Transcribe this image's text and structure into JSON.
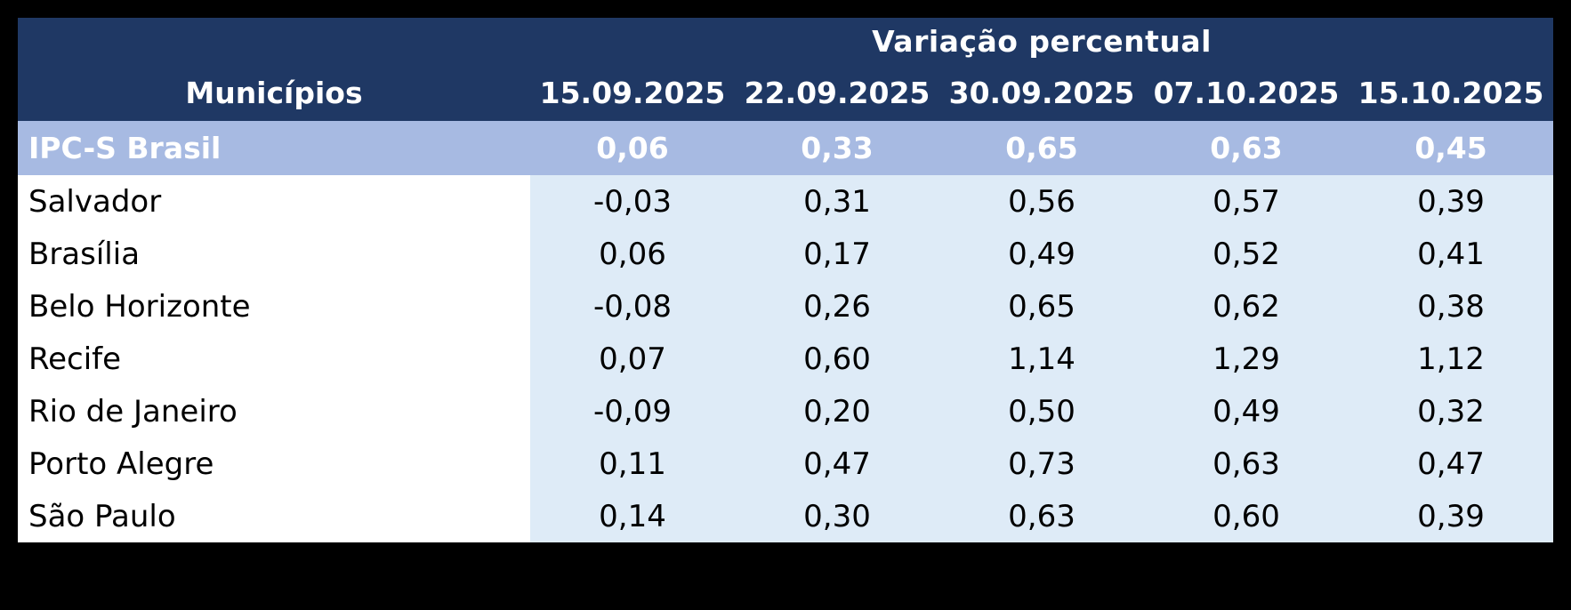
{
  "chart_data": {
    "type": "table",
    "group_header": "Variação percentual",
    "label_column_header": "Municípios",
    "date_columns": [
      "15.09.2025",
      "22.09.2025",
      "30.09.2025",
      "07.10.2025",
      "15.10.2025"
    ],
    "summary_row": {
      "label": "IPC-S Brasil",
      "values": [
        "0,06",
        "0,33",
        "0,65",
        "0,63",
        "0,45"
      ]
    },
    "rows": [
      {
        "label": "Salvador",
        "values": [
          "-0,03",
          "0,31",
          "0,56",
          "0,57",
          "0,39"
        ]
      },
      {
        "label": "Brasília",
        "values": [
          "0,06",
          "0,17",
          "0,49",
          "0,52",
          "0,41"
        ]
      },
      {
        "label": "Belo Horizonte",
        "values": [
          "-0,08",
          "0,26",
          "0,65",
          "0,62",
          "0,38"
        ]
      },
      {
        "label": "Recife",
        "values": [
          "0,07",
          "0,60",
          "1,14",
          "1,29",
          "1,12"
        ]
      },
      {
        "label": "Rio de Janeiro",
        "values": [
          "-0,09",
          "0,20",
          "0,50",
          "0,49",
          "0,32"
        ]
      },
      {
        "label": "Porto Alegre",
        "values": [
          "0,11",
          "0,47",
          "0,73",
          "0,63",
          "0,47"
        ]
      },
      {
        "label": "São Paulo",
        "values": [
          "0,14",
          "0,30",
          "0,63",
          "0,60",
          "0,39"
        ]
      }
    ]
  },
  "colors": {
    "page_bg": "#000000",
    "header_bg": "#1F3864",
    "header_fg": "#FFFFFF",
    "summary_bg": "#A7BAE2",
    "summary_fg": "#FFFFFF",
    "values_bg": "#DEEBF7",
    "label_bg": "#FFFFFF"
  }
}
